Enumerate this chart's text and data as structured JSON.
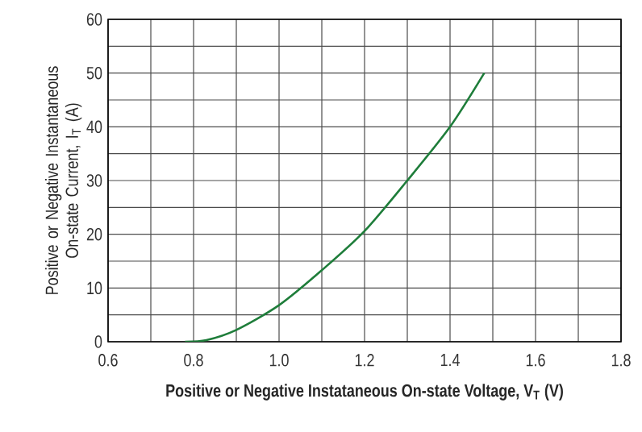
{
  "chart_data": {
    "type": "line",
    "xlabel": "Positive or Negative Instataneous On-state Voltage, V$_{T}$ (V)",
    "ylabel": "Positive or Negative Instantaneous On-state Current, I$_{T}$ (A)",
    "x": [
      0.78,
      0.83,
      0.9,
      1.0,
      1.1,
      1.2,
      1.3,
      1.4,
      1.48
    ],
    "series": [
      {
        "color": "#1e7d3a",
        "values": [
          0,
          0.3,
          2.2,
          6.8,
          13.3,
          20.6,
          30,
          40,
          50
        ]
      }
    ],
    "xlim": [
      0.6,
      1.8
    ],
    "ylim": [
      0,
      60
    ],
    "xticks": [
      0.6,
      {
        "value": 0.7,
        "label": null
      },
      0.8,
      {
        "value": 0.9,
        "label": null
      },
      {
        "value": 1.0,
        "label": "1.0"
      },
      {
        "value": 1.1,
        "label": null
      },
      1.2,
      {
        "value": 1.3,
        "label": null
      },
      1.4,
      {
        "value": 1.5,
        "label": null
      },
      1.6,
      {
        "value": 1.7,
        "label": null
      },
      1.8
    ],
    "yticks": [
      0,
      {
        "value": 5,
        "label": null
      },
      10,
      {
        "value": 15,
        "label": null
      },
      20,
      {
        "value": 25,
        "label": null
      },
      30,
      {
        "value": 35,
        "label": null
      },
      40,
      {
        "value": 45,
        "label": null
      },
      50,
      {
        "value": 55,
        "label": null
      },
      60
    ],
    "grid": true,
    "marker": "none",
    "line_style": "solid"
  }
}
